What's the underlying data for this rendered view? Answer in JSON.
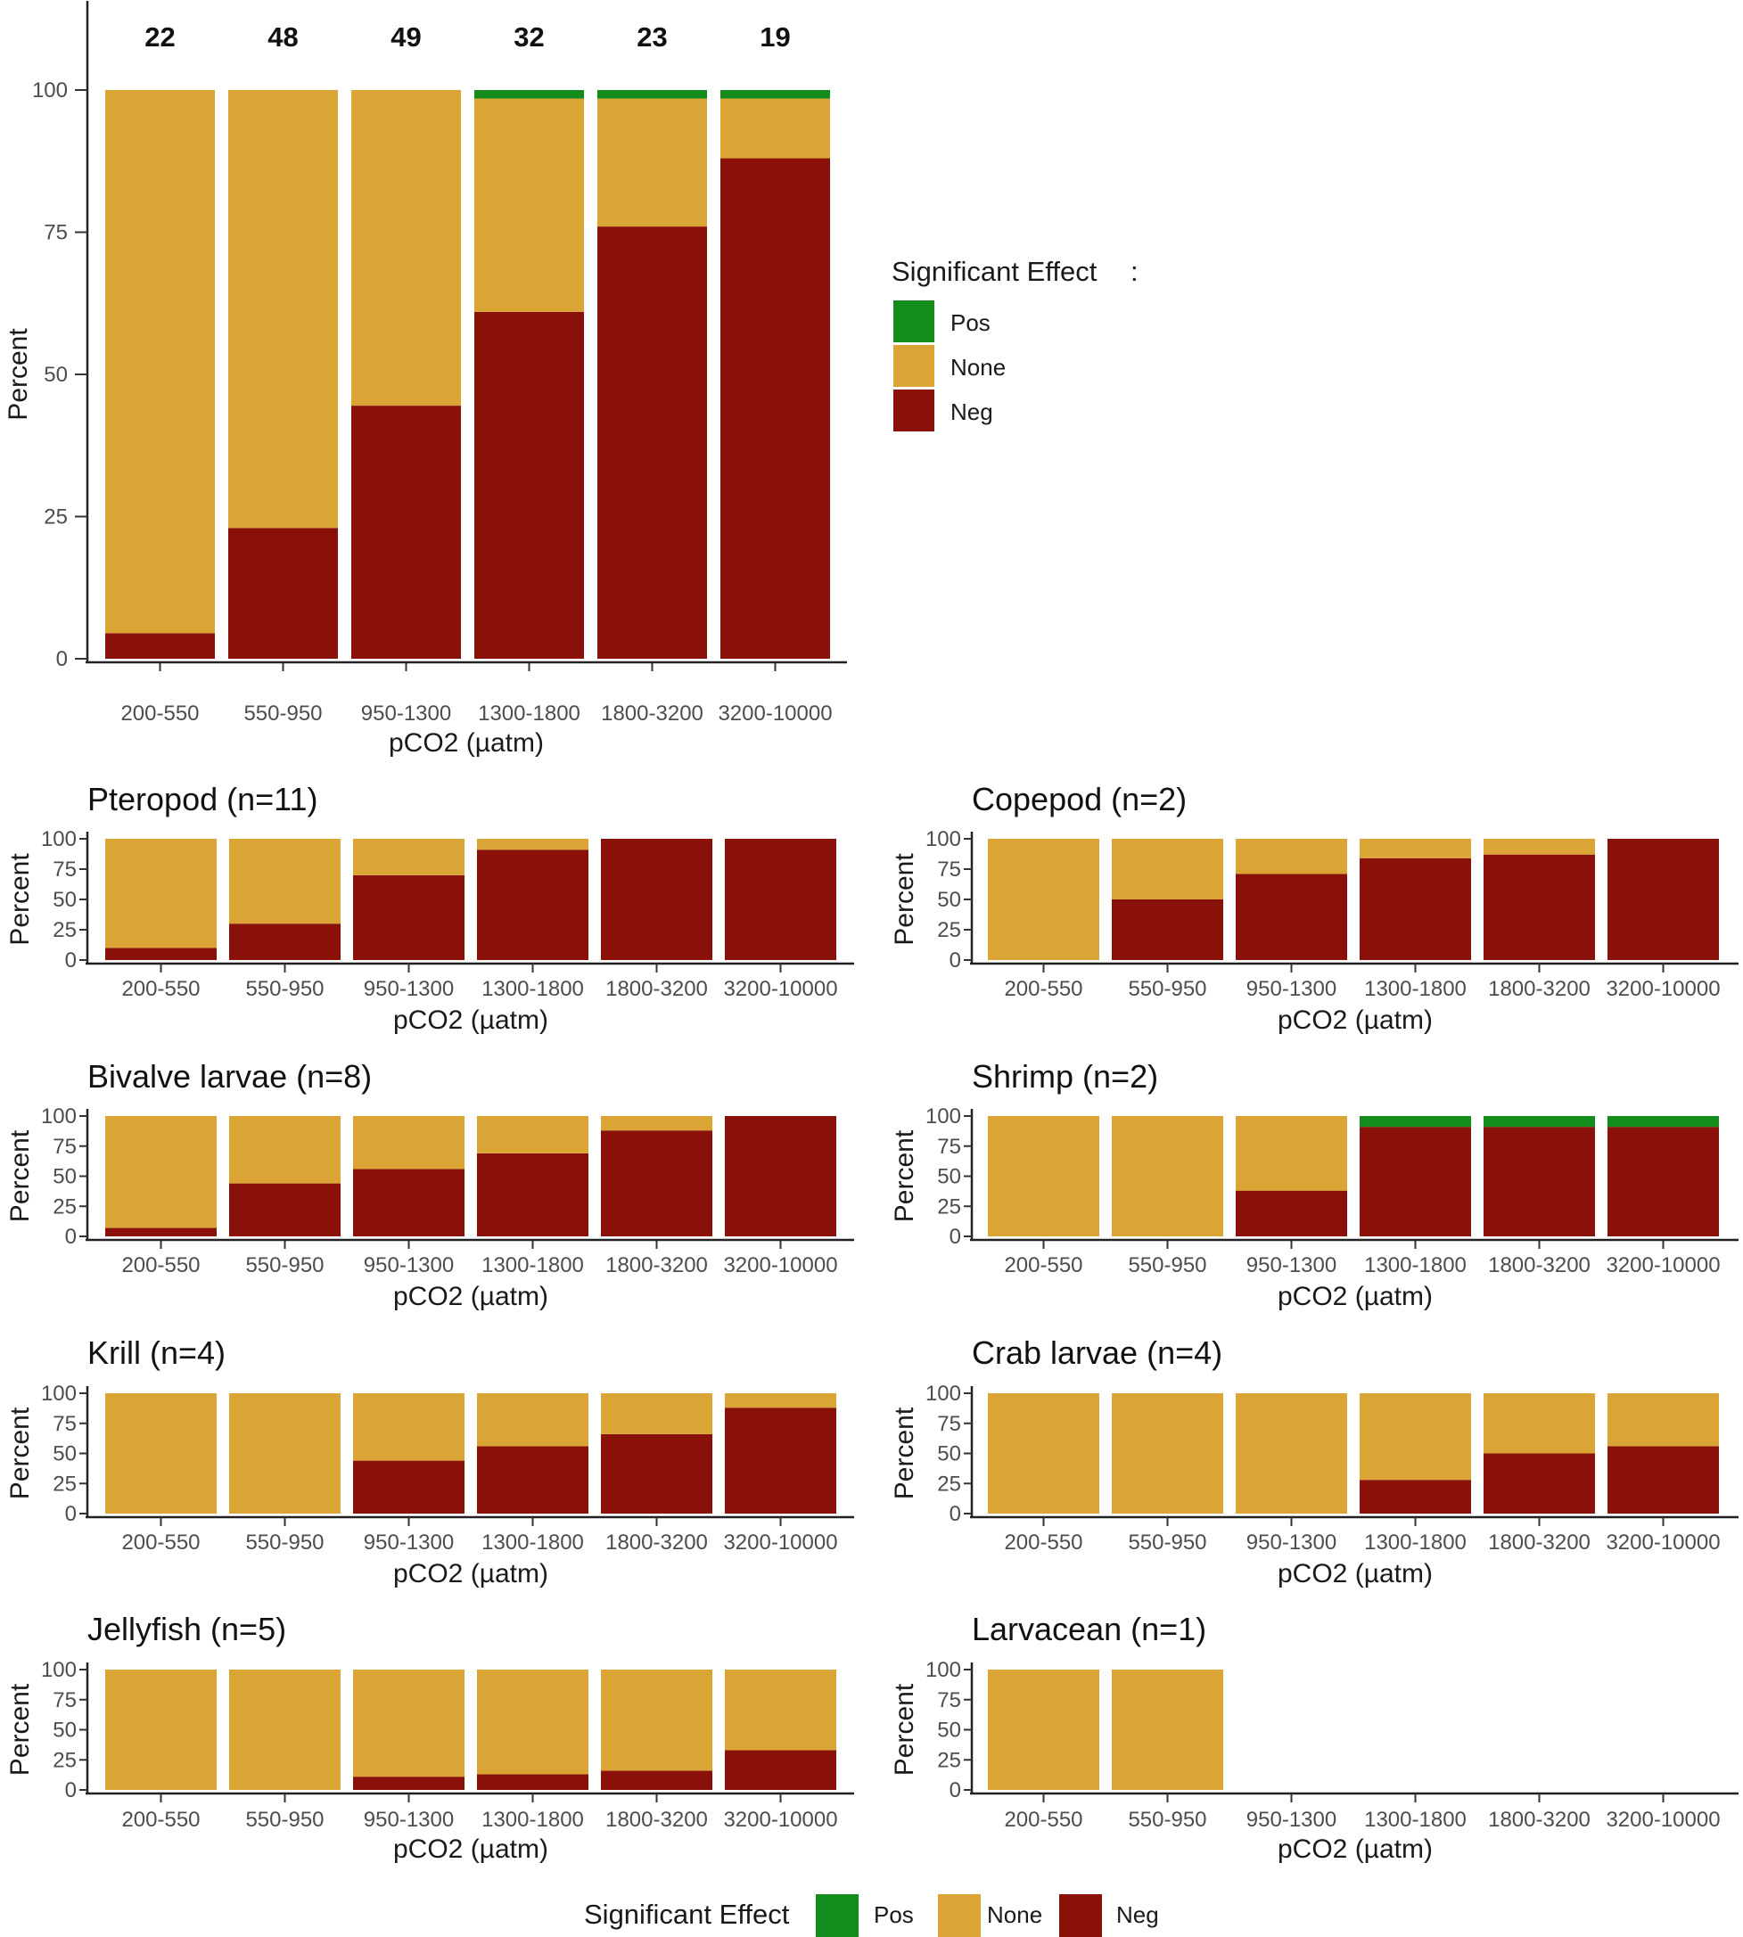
{
  "chart_data": {
    "colors": {
      "Pos": "#138c1b",
      "None": "#dba535",
      "Neg": "#8a110a"
    },
    "legend_top": {
      "title": "Significant Effect",
      "colon": ":",
      "labels": [
        "Pos",
        "None",
        "Neg"
      ],
      "position": "right"
    },
    "legend_bottom": {
      "title": "Significant Effect",
      "labels": [
        "Pos",
        "None",
        "Neg"
      ],
      "position": "bottom"
    },
    "panels": [
      {
        "id": "overall",
        "type": "bar",
        "stacked": true,
        "title": "",
        "xlabel": "pCO2 (µatm)",
        "ylabel": "Percent",
        "ylim": [
          0,
          100
        ],
        "yticks": [
          "0",
          "25",
          "50",
          "75",
          "100"
        ],
        "categories": [
          "200-550",
          "550-950",
          "950-1300",
          "1300-1800",
          "1800-3200",
          "3200-10000"
        ],
        "counts": [
          "22",
          "48",
          "49",
          "32",
          "23",
          "19"
        ],
        "series": [
          {
            "name": "Neg",
            "values": [
              4.5,
              23,
              44.5,
              61,
              76,
              88
            ]
          },
          {
            "name": "None",
            "values": [
              95.5,
              77,
              55.5,
              37.5,
              22.5,
              10.5
            ]
          },
          {
            "name": "Pos",
            "values": [
              0,
              0,
              0,
              1.5,
              1.5,
              1.5
            ]
          }
        ]
      },
      {
        "id": "pteropod",
        "type": "bar",
        "stacked": true,
        "title": "Pteropod (n=11)",
        "xlabel": "pCO2 (µatm)",
        "ylabel": "Percent",
        "ylim": [
          0,
          100
        ],
        "yticks": [
          "0",
          "25",
          "50",
          "75",
          "100"
        ],
        "categories": [
          "200-550",
          "550-950",
          "950-1300",
          "1300-1800",
          "1800-3200",
          "3200-10000"
        ],
        "series": [
          {
            "name": "Neg",
            "values": [
              10,
              30,
              70,
              91,
              100,
              100
            ]
          },
          {
            "name": "None",
            "values": [
              90,
              70,
              30,
              9,
              0,
              0
            ]
          },
          {
            "name": "Pos",
            "values": [
              0,
              0,
              0,
              0,
              0,
              0
            ]
          }
        ]
      },
      {
        "id": "copepod",
        "type": "bar",
        "stacked": true,
        "title": "Copepod (n=2)",
        "xlabel": "pCO2 (µatm)",
        "ylabel": "Percent",
        "ylim": [
          0,
          100
        ],
        "yticks": [
          "0",
          "25",
          "50",
          "75",
          "100"
        ],
        "categories": [
          "200-550",
          "550-950",
          "950-1300",
          "1300-1800",
          "1800-3200",
          "3200-10000"
        ],
        "series": [
          {
            "name": "Neg",
            "values": [
              0,
              50,
              71,
              84,
              87,
              100
            ]
          },
          {
            "name": "None",
            "values": [
              100,
              50,
              29,
              16,
              13,
              0
            ]
          },
          {
            "name": "Pos",
            "values": [
              0,
              0,
              0,
              0,
              0,
              0
            ]
          }
        ]
      },
      {
        "id": "bivalve",
        "type": "bar",
        "stacked": true,
        "title": "Bivalve larvae (n=8)",
        "xlabel": "pCO2 (µatm)",
        "ylabel": "Percent",
        "ylim": [
          0,
          100
        ],
        "yticks": [
          "0",
          "25",
          "50",
          "75",
          "100"
        ],
        "categories": [
          "200-550",
          "550-950",
          "950-1300",
          "1300-1800",
          "1800-3200",
          "3200-10000"
        ],
        "series": [
          {
            "name": "Neg",
            "values": [
              7,
              44,
              56,
              69,
              88,
              100
            ]
          },
          {
            "name": "None",
            "values": [
              93,
              56,
              44,
              31,
              12,
              0
            ]
          },
          {
            "name": "Pos",
            "values": [
              0,
              0,
              0,
              0,
              0,
              0
            ]
          }
        ]
      },
      {
        "id": "shrimp",
        "type": "bar",
        "stacked": true,
        "title": "Shrimp (n=2)",
        "xlabel": "pCO2 (µatm)",
        "ylabel": "Percent",
        "ylim": [
          0,
          100
        ],
        "yticks": [
          "0",
          "25",
          "50",
          "75",
          "100"
        ],
        "categories": [
          "200-550",
          "550-950",
          "950-1300",
          "1300-1800",
          "1800-3200",
          "3200-10000"
        ],
        "series": [
          {
            "name": "Neg",
            "values": [
              0,
              0,
              38,
              91,
              91,
              91
            ]
          },
          {
            "name": "None",
            "values": [
              100,
              100,
              62,
              0,
              0,
              0
            ]
          },
          {
            "name": "Pos",
            "values": [
              0,
              0,
              0,
              9,
              9,
              9
            ]
          }
        ]
      },
      {
        "id": "krill",
        "type": "bar",
        "stacked": true,
        "title": "Krill (n=4)",
        "xlabel": "pCO2 (µatm)",
        "ylabel": "Percent",
        "ylim": [
          0,
          100
        ],
        "yticks": [
          "0",
          "25",
          "50",
          "75",
          "100"
        ],
        "categories": [
          "200-550",
          "550-950",
          "950-1300",
          "1300-1800",
          "1800-3200",
          "3200-10000"
        ],
        "series": [
          {
            "name": "Neg",
            "values": [
              0,
              0,
              44,
              56,
              66,
              88
            ]
          },
          {
            "name": "None",
            "values": [
              100,
              100,
              56,
              44,
              34,
              12
            ]
          },
          {
            "name": "Pos",
            "values": [
              0,
              0,
              0,
              0,
              0,
              0
            ]
          }
        ]
      },
      {
        "id": "crab",
        "type": "bar",
        "stacked": true,
        "title": "Crab larvae (n=4)",
        "xlabel": "pCO2 (µatm)",
        "ylabel": "Percent",
        "ylim": [
          0,
          100
        ],
        "yticks": [
          "0",
          "25",
          "50",
          "75",
          "100"
        ],
        "categories": [
          "200-550",
          "550-950",
          "950-1300",
          "1300-1800",
          "1800-3200",
          "3200-10000"
        ],
        "series": [
          {
            "name": "Neg",
            "values": [
              0,
              0,
              0,
              28,
              50,
              56
            ]
          },
          {
            "name": "None",
            "values": [
              100,
              100,
              100,
              72,
              50,
              44
            ]
          },
          {
            "name": "Pos",
            "values": [
              0,
              0,
              0,
              0,
              0,
              0
            ]
          }
        ]
      },
      {
        "id": "jellyfish",
        "type": "bar",
        "stacked": true,
        "title": "Jellyfish (n=5)",
        "xlabel": "pCO2 (µatm)",
        "ylabel": "Percent",
        "ylim": [
          0,
          100
        ],
        "yticks": [
          "0",
          "25",
          "50",
          "75",
          "100"
        ],
        "categories": [
          "200-550",
          "550-950",
          "950-1300",
          "1300-1800",
          "1800-3200",
          "3200-10000"
        ],
        "series": [
          {
            "name": "Neg",
            "values": [
              0,
              0,
              11,
              13,
              16,
              33
            ]
          },
          {
            "name": "None",
            "values": [
              100,
              100,
              89,
              87,
              84,
              67
            ]
          },
          {
            "name": "Pos",
            "values": [
              0,
              0,
              0,
              0,
              0,
              0
            ]
          }
        ]
      },
      {
        "id": "larvacean",
        "type": "bar",
        "stacked": true,
        "title": "Larvacean (n=1)",
        "xlabel": "pCO2 (µatm)",
        "ylabel": "Percent",
        "ylim": [
          0,
          100
        ],
        "yticks": [
          "0",
          "25",
          "50",
          "75",
          "100"
        ],
        "categories": [
          "200-550",
          "550-950",
          "950-1300",
          "1300-1800",
          "1800-3200",
          "3200-10000"
        ],
        "series": [
          {
            "name": "Neg",
            "values": [
              0,
              0,
              null,
              null,
              null,
              null
            ]
          },
          {
            "name": "None",
            "values": [
              100,
              100,
              null,
              null,
              null,
              null
            ]
          },
          {
            "name": "Pos",
            "values": [
              0,
              0,
              null,
              null,
              null,
              null
            ]
          }
        ]
      }
    ]
  }
}
